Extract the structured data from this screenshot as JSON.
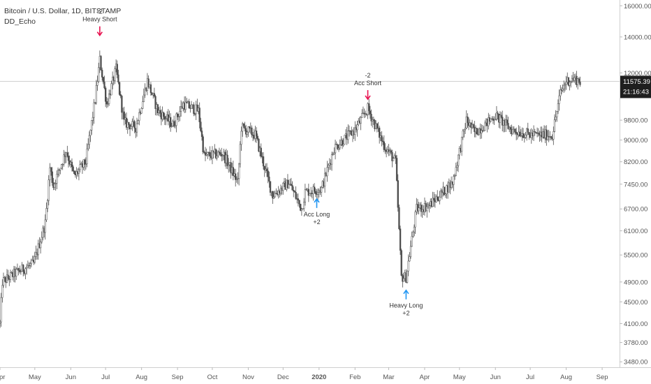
{
  "header": {
    "symbol_title": "Bitcoin / U.S. Dollar, 1D, BITSTAMP",
    "indicator_name": "DD_Echo"
  },
  "price_axis": {
    "current_price": "11575.39",
    "countdown": "21:16:43"
  },
  "colors": {
    "background": "#ffffff",
    "candle": "#4d4d4d",
    "short_signal": "#e8114f",
    "long_signal": "#2196f3",
    "price_label_bg": "#1f1f1f",
    "price_line": "#d0d0d0",
    "axis_text": "#555555"
  },
  "chart_data": {
    "type": "candlestick",
    "title": "Bitcoin / U.S. Dollar, 1D, BITSTAMP",
    "y_scale": "log",
    "y_ticks": [
      16000,
      14000,
      12000,
      9800,
      9000,
      8200,
      7450,
      6700,
      6100,
      5500,
      4900,
      4500,
      4100,
      3780,
      3480
    ],
    "y_tick_labels": [
      "16000.00",
      "14000.00",
      "12000.00",
      "9800.00",
      "9000.00",
      "8200.00",
      "7450.00",
      "6700.00",
      "6100.00",
      "5500.00",
      "4900.00",
      "4500.00",
      "4100.00",
      "3780.00",
      "3480.00"
    ],
    "x_ticks": [
      {
        "label": "Apr",
        "date": "2019-04-01"
      },
      {
        "label": "May",
        "date": "2019-05-01"
      },
      {
        "label": "Jun",
        "date": "2019-06-01"
      },
      {
        "label": "Jul",
        "date": "2019-07-01"
      },
      {
        "label": "Aug",
        "date": "2019-08-01"
      },
      {
        "label": "Sep",
        "date": "2019-09-01"
      },
      {
        "label": "Oct",
        "date": "2019-10-01"
      },
      {
        "label": "Nov",
        "date": "2019-11-01"
      },
      {
        "label": "Dec",
        "date": "2019-12-01"
      },
      {
        "label": "2020",
        "date": "2020-01-01"
      },
      {
        "label": "Feb",
        "date": "2020-02-01"
      },
      {
        "label": "Mar",
        "date": "2020-03-01"
      },
      {
        "label": "Apr",
        "date": "2020-04-01"
      },
      {
        "label": "May",
        "date": "2020-05-01"
      },
      {
        "label": "Jun",
        "date": "2020-06-01"
      },
      {
        "label": "Jul",
        "date": "2020-07-01"
      },
      {
        "label": "Aug",
        "date": "2020-08-01"
      },
      {
        "label": "Sep",
        "date": "2020-09-01"
      }
    ],
    "x_range": [
      "2019-04-01",
      "2020-09-16"
    ],
    "y_range": [
      3400,
      16400
    ],
    "last_price": 11575.39,
    "price_path": [
      {
        "date": "2019-04-01",
        "price": 4100
      },
      {
        "date": "2019-04-03",
        "price": 4900
      },
      {
        "date": "2019-04-15",
        "price": 5100
      },
      {
        "date": "2019-04-30",
        "price": 5300
      },
      {
        "date": "2019-05-10",
        "price": 6300
      },
      {
        "date": "2019-05-14",
        "price": 8000
      },
      {
        "date": "2019-05-17",
        "price": 7400
      },
      {
        "date": "2019-05-28",
        "price": 8600
      },
      {
        "date": "2019-06-04",
        "price": 7700
      },
      {
        "date": "2019-06-14",
        "price": 8200
      },
      {
        "date": "2019-06-22",
        "price": 10700
      },
      {
        "date": "2019-06-26",
        "price": 12700
      },
      {
        "date": "2019-07-02",
        "price": 10500
      },
      {
        "date": "2019-07-10",
        "price": 12200
      },
      {
        "date": "2019-07-17",
        "price": 9700
      },
      {
        "date": "2019-07-27",
        "price": 9500
      },
      {
        "date": "2019-08-06",
        "price": 11600
      },
      {
        "date": "2019-08-15",
        "price": 10200
      },
      {
        "date": "2019-08-28",
        "price": 9600
      },
      {
        "date": "2019-09-06",
        "price": 10500
      },
      {
        "date": "2019-09-19",
        "price": 10200
      },
      {
        "date": "2019-09-24",
        "price": 8400
      },
      {
        "date": "2019-10-10",
        "price": 8500
      },
      {
        "date": "2019-10-23",
        "price": 7500
      },
      {
        "date": "2019-10-26",
        "price": 9500
      },
      {
        "date": "2019-11-07",
        "price": 9200
      },
      {
        "date": "2019-11-22",
        "price": 7100
      },
      {
        "date": "2019-12-06",
        "price": 7500
      },
      {
        "date": "2019-12-17",
        "price": 6700
      },
      {
        "date": "2019-12-20",
        "price": 7200
      },
      {
        "date": "2020-01-03",
        "price": 7300
      },
      {
        "date": "2020-01-14",
        "price": 8700
      },
      {
        "date": "2020-02-01",
        "price": 9400
      },
      {
        "date": "2020-02-12",
        "price": 10300
      },
      {
        "date": "2020-02-26",
        "price": 8800
      },
      {
        "date": "2020-03-07",
        "price": 8200
      },
      {
        "date": "2020-03-12",
        "price": 5000
      },
      {
        "date": "2020-03-16",
        "price": 5000
      },
      {
        "date": "2020-03-25",
        "price": 6700
      },
      {
        "date": "2020-04-05",
        "price": 6800
      },
      {
        "date": "2020-04-25",
        "price": 7500
      },
      {
        "date": "2020-05-07",
        "price": 9800
      },
      {
        "date": "2020-05-14",
        "price": 9300
      },
      {
        "date": "2020-05-20",
        "price": 9500
      },
      {
        "date": "2020-06-01",
        "price": 10000
      },
      {
        "date": "2020-06-15",
        "price": 9400
      },
      {
        "date": "2020-07-01",
        "price": 9200
      },
      {
        "date": "2020-07-20",
        "price": 9200
      },
      {
        "date": "2020-07-27",
        "price": 11000
      },
      {
        "date": "2020-08-01",
        "price": 11600
      },
      {
        "date": "2020-08-08",
        "price": 11700
      },
      {
        "date": "2020-08-13",
        "price": 11575.39
      }
    ],
    "signals": [
      {
        "date": "2019-06-26",
        "side": "short",
        "value": "-2",
        "label": "Heavy Short",
        "price": 13800
      },
      {
        "date": "2020-02-12",
        "side": "short",
        "value": "-2",
        "label": "Acc Short",
        "price": 10500
      },
      {
        "date": "2019-12-30",
        "side": "long",
        "value": "+2",
        "label": "Acc Long",
        "price": 7100
      },
      {
        "date": "2020-03-16",
        "side": "long",
        "value": "+2",
        "label": "Heavy Long",
        "price": 4800
      }
    ]
  }
}
